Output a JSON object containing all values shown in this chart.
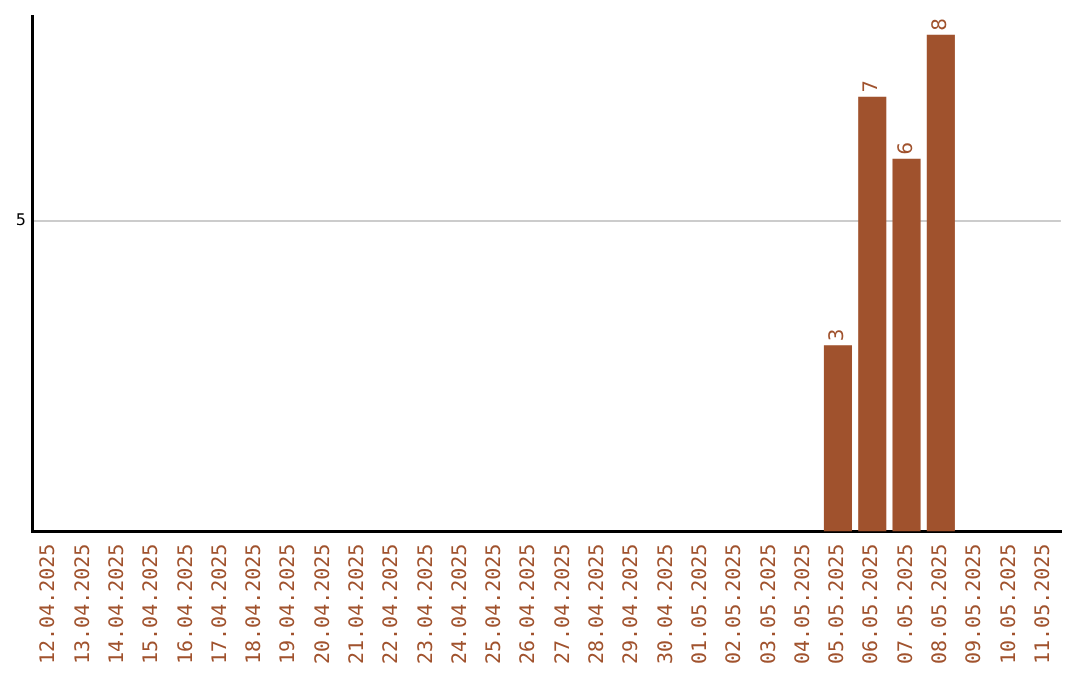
{
  "chart_data": {
    "type": "bar",
    "categories": [
      "12.04.2025",
      "13.04.2025",
      "14.04.2025",
      "15.04.2025",
      "16.04.2025",
      "17.04.2025",
      "18.04.2025",
      "19.04.2025",
      "20.04.2025",
      "21.04.2025",
      "22.04.2025",
      "23.04.2025",
      "24.04.2025",
      "25.04.2025",
      "26.04.2025",
      "27.04.2025",
      "28.04.2025",
      "29.04.2025",
      "30.04.2025",
      "01.05.2025",
      "02.05.2025",
      "03.05.2025",
      "04.05.2025",
      "05.05.2025",
      "06.05.2025",
      "07.05.2025",
      "08.05.2025",
      "09.05.2025",
      "10.05.2025",
      "11.05.2025"
    ],
    "values": [
      null,
      null,
      null,
      null,
      null,
      null,
      null,
      null,
      null,
      null,
      null,
      null,
      null,
      null,
      null,
      null,
      null,
      null,
      null,
      null,
      null,
      null,
      null,
      3,
      7,
      6,
      8,
      null,
      null,
      null
    ],
    "data_labels": true,
    "color": "#a0522d",
    "ylim": [
      0,
      8.3
    ],
    "yticks": [
      5
    ],
    "grid": "y",
    "legend": false
  }
}
